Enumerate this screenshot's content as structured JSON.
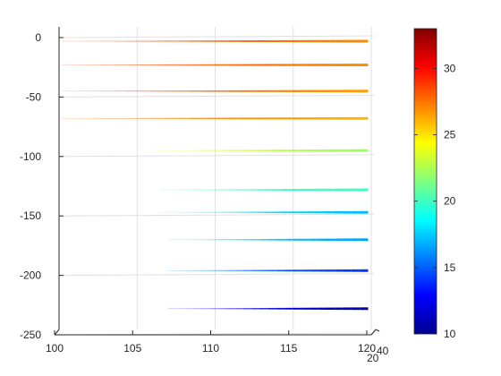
{
  "chart_data": {
    "type": "line",
    "title": "",
    "xlabel": "",
    "ylabel": "",
    "xlim": [
      100,
      120
    ],
    "ylim": [
      -250,
      5
    ],
    "x_ticks": [
      "100",
      "105",
      "110",
      "115",
      "120"
    ],
    "y_ticks": [
      "0",
      "-50",
      "-100",
      "-150",
      "-200",
      "-250"
    ],
    "z_tick_labels": [
      "40",
      "20"
    ],
    "grid": true,
    "colormap": "jet",
    "colorbar": {
      "min": 10,
      "max": 33,
      "ticks": [
        "10",
        "15",
        "20",
        "25",
        "30"
      ],
      "position": "right"
    },
    "series": [
      {
        "y": -3,
        "x": [
          100.2,
          119.8
        ],
        "values": [
          29,
          27
        ]
      },
      {
        "y": -23,
        "x": [
          100.2,
          119.8
        ],
        "values": [
          29,
          27
        ]
      },
      {
        "y": -45,
        "x": [
          100.2,
          119.8
        ],
        "values": [
          29,
          26.5
        ]
      },
      {
        "y": -68,
        "x": [
          100.2,
          119.8
        ],
        "values": [
          28,
          26
        ]
      },
      {
        "y": -95,
        "x": [
          106.0,
          119.8
        ],
        "values": [
          24,
          22
        ]
      },
      {
        "y": -128,
        "x": [
          106.5,
          119.8
        ],
        "values": [
          20,
          20
        ]
      },
      {
        "y": -147,
        "x": [
          106.5,
          119.8
        ],
        "values": [
          19,
          17
        ]
      },
      {
        "y": -170,
        "x": [
          107.0,
          119.8
        ],
        "values": [
          18,
          16.5
        ]
      },
      {
        "y": -196,
        "x": [
          107.0,
          119.8
        ],
        "values": [
          16,
          14
        ]
      },
      {
        "y": -228,
        "x": [
          107.0,
          119.8
        ],
        "values": [
          13,
          11
        ]
      }
    ]
  }
}
